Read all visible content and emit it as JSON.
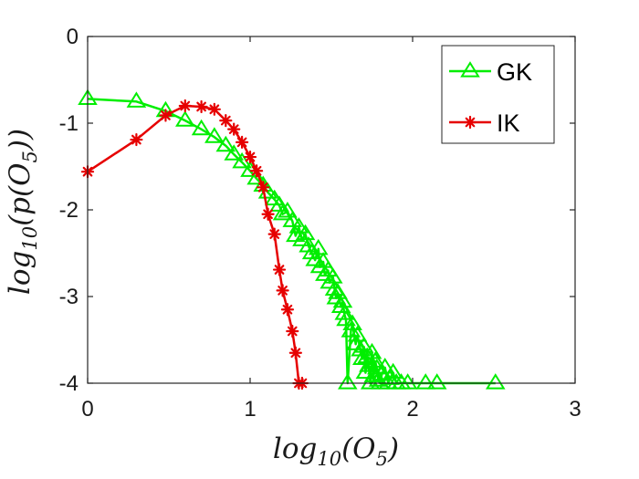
{
  "chart_data": {
    "type": "line",
    "xlabel": "log10(O5)",
    "ylabel": "log10(p(O5))",
    "xlim": [
      0,
      3
    ],
    "ylim": [
      -4,
      0
    ],
    "xticks": [
      0,
      1,
      2,
      3
    ],
    "yticks": [
      0,
      -1,
      -2,
      -3,
      -4
    ],
    "xtick_labels": [
      "0",
      "1",
      "2",
      "3"
    ],
    "ytick_labels": [
      "0",
      "-1",
      "-2",
      "-3",
      "-4"
    ],
    "grid": false,
    "legend_position": "top-right",
    "series": [
      {
        "name": "GK",
        "color": "#00ee00",
        "marker": "triangle",
        "x": [
          0.0,
          0.3,
          0.48,
          0.6,
          0.7,
          0.78,
          0.85,
          0.9,
          0.95,
          1.0,
          1.04,
          1.08,
          1.11,
          1.15,
          1.18,
          1.2,
          1.23,
          1.26,
          1.28,
          1.3,
          1.32,
          1.34,
          1.36,
          1.38,
          1.4,
          1.42,
          1.43,
          1.45,
          1.46,
          1.48,
          1.49,
          1.51,
          1.52,
          1.53,
          1.54,
          1.56,
          1.57,
          1.58,
          1.59,
          1.6,
          1.62,
          1.63,
          1.65,
          1.66,
          1.68,
          1.69,
          1.7,
          1.71,
          1.72,
          1.73,
          1.74,
          1.75,
          1.76,
          1.77,
          1.78,
          1.79,
          1.8,
          1.81,
          1.83,
          1.85,
          1.86,
          1.88,
          1.9,
          1.93,
          1.97,
          2.08,
          2.15,
          2.51
        ],
        "y": [
          -0.72,
          -0.75,
          -0.86,
          -0.97,
          -1.07,
          -1.16,
          -1.26,
          -1.36,
          -1.45,
          -1.55,
          -1.64,
          -1.72,
          -1.8,
          -1.88,
          -1.95,
          -2.05,
          -2.02,
          -2.13,
          -2.3,
          -2.2,
          -2.35,
          -2.28,
          -2.42,
          -2.5,
          -2.58,
          -2.45,
          -2.66,
          -2.6,
          -2.75,
          -2.7,
          -2.84,
          -2.78,
          -2.92,
          -3.02,
          -2.96,
          -3.12,
          -3.06,
          -3.2,
          -3.27,
          -4.0,
          -3.4,
          -3.32,
          -3.55,
          -3.45,
          -3.62,
          -3.72,
          -3.58,
          -3.88,
          -3.7,
          -3.8,
          -4.0,
          -3.65,
          -3.92,
          -3.75,
          -3.83,
          -3.97,
          -4.0,
          -3.9,
          -3.82,
          -4.0,
          -3.95,
          -3.88,
          -4.0,
          -4.0,
          -4.0,
          -4.0,
          -4.0,
          -4.0
        ]
      },
      {
        "name": "IK",
        "color": "#e60000",
        "marker": "asterisk",
        "x": [
          0.0,
          0.3,
          0.48,
          0.6,
          0.7,
          0.78,
          0.85,
          0.9,
          0.95,
          1.0,
          1.04,
          1.08,
          1.11,
          1.15,
          1.18,
          1.2,
          1.23,
          1.26,
          1.28,
          1.3,
          1.32
        ],
        "y": [
          -1.56,
          -1.19,
          -0.91,
          -0.8,
          -0.81,
          -0.84,
          -0.97,
          -1.07,
          -1.22,
          -1.39,
          -1.55,
          -1.74,
          -2.05,
          -2.28,
          -2.69,
          -2.93,
          -3.15,
          -3.4,
          -3.65,
          -4.0,
          -4.0
        ]
      }
    ]
  }
}
